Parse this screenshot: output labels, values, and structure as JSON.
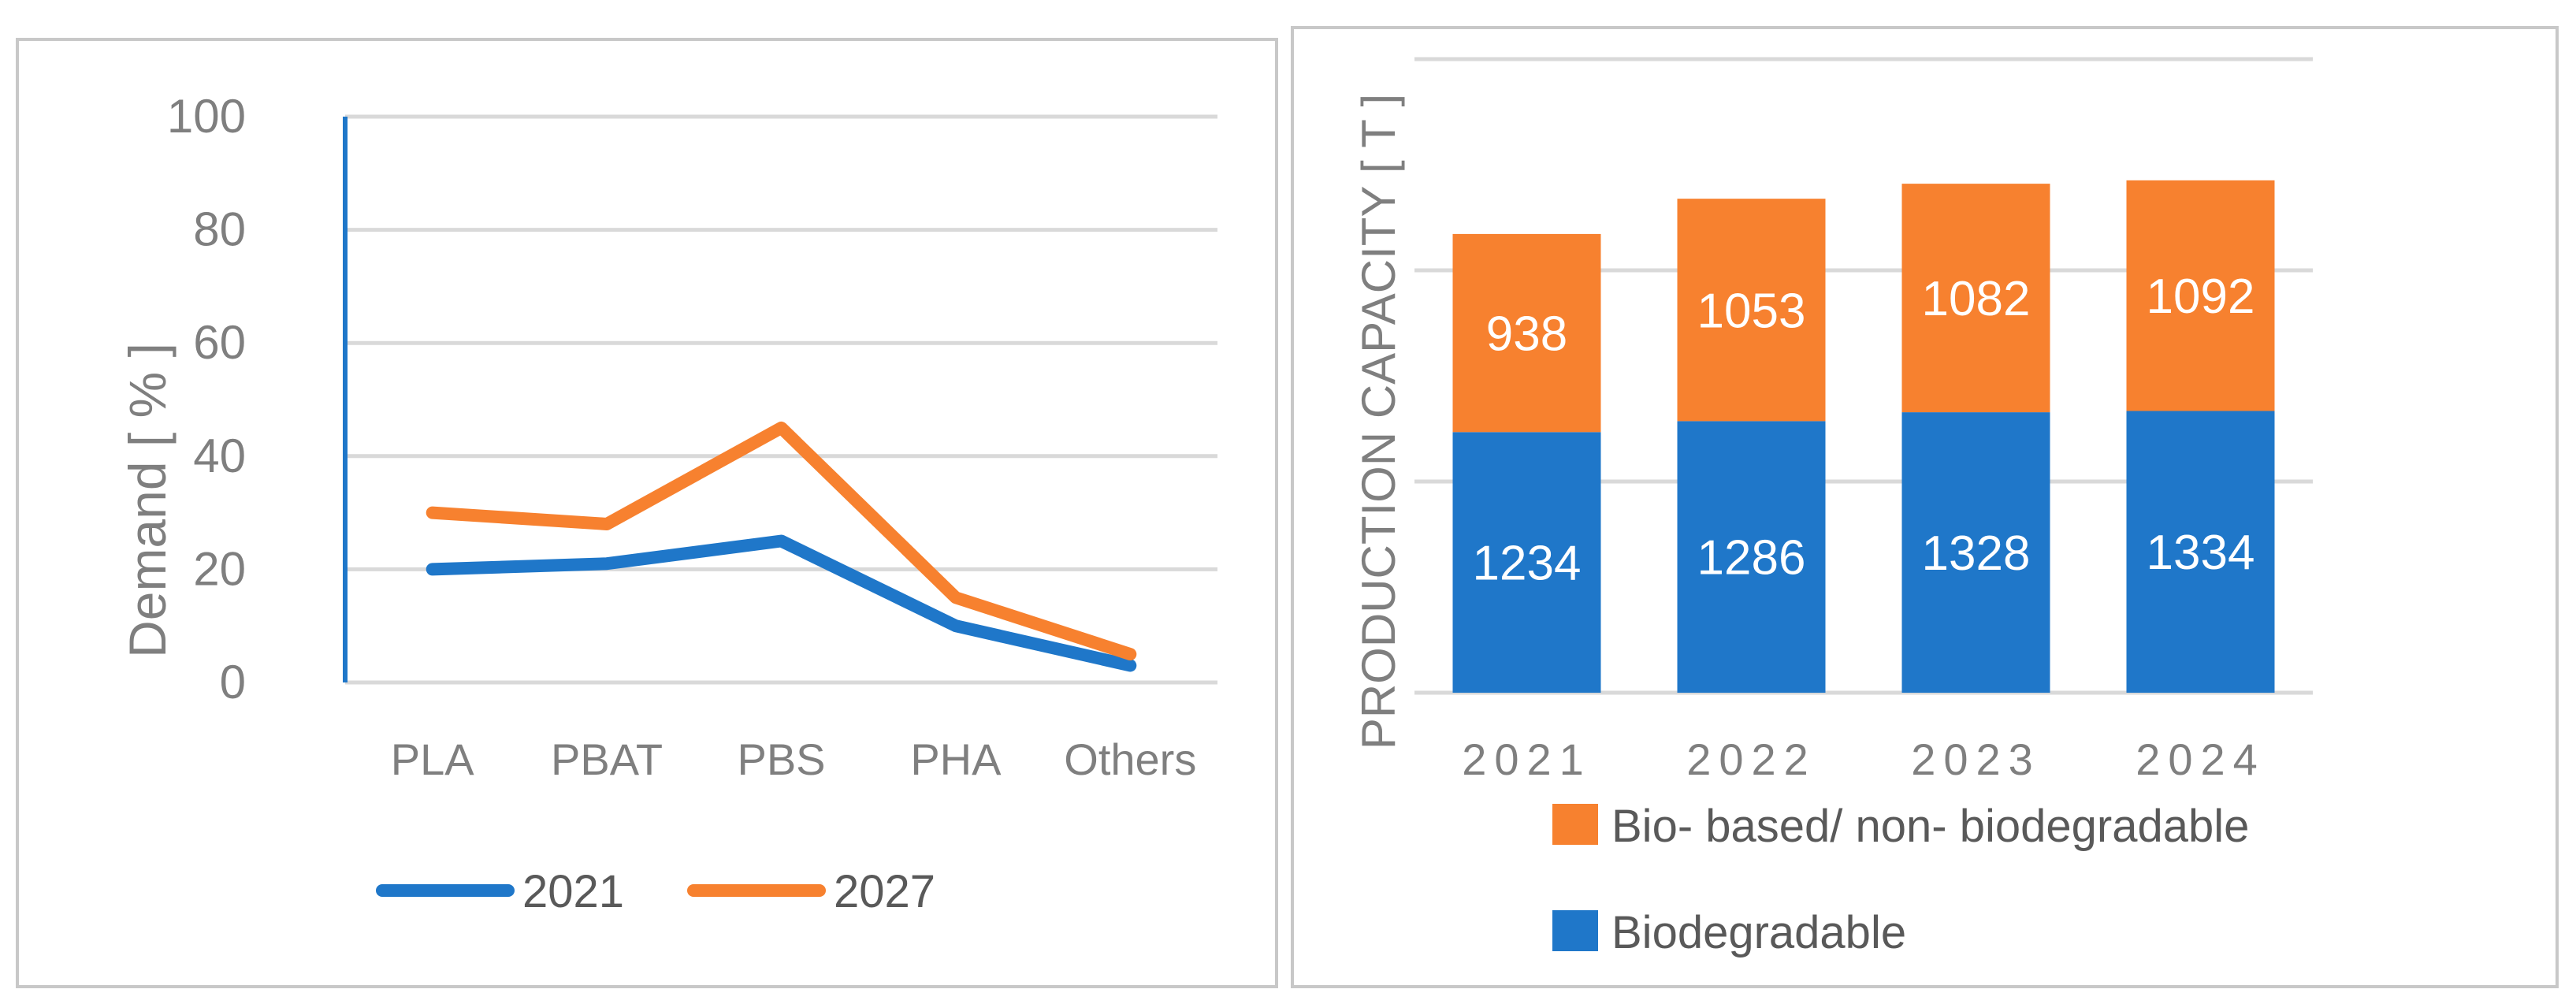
{
  "colors": {
    "blue": "#1f77c9",
    "orange": "#f7812f",
    "grid": "#d9d9d9",
    "text": "#7f7f7f"
  },
  "chart_data": [
    {
      "type": "line",
      "title": "",
      "xlabel": "",
      "ylabel": "Demand  [ % ]",
      "categories": [
        "PLA",
        "PBAT",
        "PBS",
        "PHA",
        "Others"
      ],
      "ylim": [
        0,
        100
      ],
      "yticks": [
        "0",
        "20",
        "40",
        "60",
        "80",
        "100"
      ],
      "grid": true,
      "legend": "bottom",
      "series": [
        {
          "name": "2021",
          "values": [
            20,
            21,
            25,
            10,
            3
          ],
          "color": "#1f77c9"
        },
        {
          "name": "2027",
          "values": [
            30,
            28,
            45,
            15,
            5
          ],
          "color": "#f7812f"
        }
      ]
    },
    {
      "type": "bar",
      "stacked": true,
      "title": "",
      "xlabel": "",
      "ylabel": "PRODUCTION CAPACITY [ T ]",
      "categories": [
        "2021",
        "2022",
        "2023",
        "2024"
      ],
      "ylim": [
        0,
        3000
      ],
      "grid": true,
      "legend": "bottom",
      "series": [
        {
          "name": "Biodegradable",
          "values": [
            1234,
            1286,
            1328,
            1334
          ],
          "labels": [
            "1234",
            "1286",
            "1328",
            "1334"
          ],
          "color": "#1f77c9"
        },
        {
          "name": "Bio- based/ non- biodegradable",
          "values": [
            938,
            1053,
            1082,
            1092
          ],
          "labels": [
            "938",
            "1053",
            "1082",
            "1092"
          ],
          "color": "#f7812f"
        }
      ]
    }
  ]
}
